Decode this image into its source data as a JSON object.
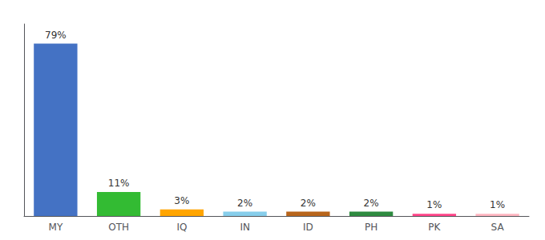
{
  "chart_data": {
    "type": "bar",
    "categories": [
      "MY",
      "OTH",
      "IQ",
      "IN",
      "ID",
      "PH",
      "PK",
      "SA"
    ],
    "values": [
      79,
      11,
      3,
      2,
      2,
      2,
      1,
      1
    ],
    "value_labels": [
      "79%",
      "11%",
      "3%",
      "2%",
      "2%",
      "2%",
      "1%",
      "1%"
    ],
    "colors": [
      "#4472C4",
      "#33BB33",
      "#FFA500",
      "#87CEEB",
      "#B8651B",
      "#2E8B40",
      "#FF4488",
      "#FFB6C1"
    ],
    "ylim": [
      0,
      88
    ],
    "yticks": [],
    "tick_labels": "x",
    "grid": false,
    "data_labels": true
  }
}
